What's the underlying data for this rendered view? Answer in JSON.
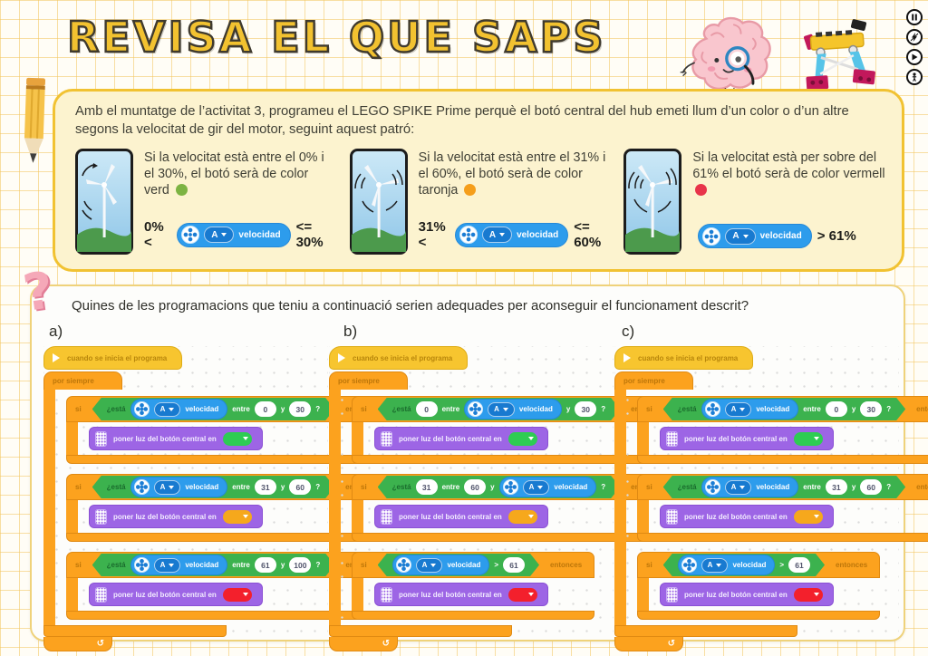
{
  "title": "REVISA EL QUE SAPS",
  "floating_controls": {
    "icons": [
      "pause-icon",
      "lightning-icon",
      "play-icon",
      "person-icon"
    ]
  },
  "intro": "Amb el muntatge de l’activitat 3, programeu el LEGO SPIKE Prime perquè el botó central del hub emeti llum d’un color o d’un altre segons la velocitat de gir del motor, seguint aquest patró:",
  "conditions": [
    {
      "text": "Si la velocitat està entre el 0% i el 30%, el botó serà de color verd",
      "dot_color": "#7CB342",
      "prefix": "0% <",
      "suffix": "<= 30%"
    },
    {
      "text": "Si la velocitat està entre el 31% i el 60%, el botó serà de color taronja",
      "dot_color": "#F59E1B",
      "prefix": "31% <",
      "suffix": "<= 60%"
    },
    {
      "text": "Si la velocitat està per sobre del 61% el botó serà de color vermell",
      "dot_color": "#E8344A",
      "prefix": "",
      "suffix": "> 61%"
    }
  ],
  "question": "Quines de les programacions que teniu a continuació serien adequades per aconseguir el funcionament descrit?",
  "blocks": {
    "hat": "cuando se inicia el programa",
    "forever": "por siempre",
    "if": "si",
    "then": "entonces",
    "esta": "¿está",
    "set_light": "poner luz del botón central en",
    "port": "A",
    "metric": "velocidad",
    "loop_arrow": "↺"
  },
  "programs": [
    {
      "label": "a)",
      "ifs": [
        {
          "light": "#2ECC53",
          "segments": [
            {
              "t": "esta"
            },
            {
              "t": "motor"
            },
            {
              "t": "lbl",
              "v": "entre"
            },
            {
              "t": "num",
              "v": "0"
            },
            {
              "t": "lbl",
              "v": "y"
            },
            {
              "t": "num",
              "v": "30"
            },
            {
              "t": "lbl",
              "v": "?"
            }
          ]
        },
        {
          "light": "#F6A81C",
          "segments": [
            {
              "t": "esta"
            },
            {
              "t": "motor"
            },
            {
              "t": "lbl",
              "v": "entre"
            },
            {
              "t": "num",
              "v": "31"
            },
            {
              "t": "lbl",
              "v": "y"
            },
            {
              "t": "num",
              "v": "60"
            },
            {
              "t": "lbl",
              "v": "?"
            }
          ]
        },
        {
          "light": "#F3202C",
          "segments": [
            {
              "t": "esta"
            },
            {
              "t": "motor"
            },
            {
              "t": "lbl",
              "v": "entre"
            },
            {
              "t": "num",
              "v": "61"
            },
            {
              "t": "lbl",
              "v": "y"
            },
            {
              "t": "num",
              "v": "100"
            },
            {
              "t": "lbl",
              "v": "?"
            }
          ]
        }
      ]
    },
    {
      "label": "b)",
      "ifs": [
        {
          "light": "#2ECC53",
          "segments": [
            {
              "t": "esta"
            },
            {
              "t": "num",
              "v": "0"
            },
            {
              "t": "lbl",
              "v": "entre"
            },
            {
              "t": "motor"
            },
            {
              "t": "lbl",
              "v": "y"
            },
            {
              "t": "num",
              "v": "30"
            },
            {
              "t": "lbl",
              "v": "?"
            }
          ]
        },
        {
          "light": "#F6A81C",
          "segments": [
            {
              "t": "esta"
            },
            {
              "t": "num",
              "v": "31"
            },
            {
              "t": "lbl",
              "v": "entre"
            },
            {
              "t": "num",
              "v": "60"
            },
            {
              "t": "lbl",
              "v": "y"
            },
            {
              "t": "motor"
            },
            {
              "t": "lbl",
              "v": "?"
            }
          ]
        },
        {
          "light": "#F3202C",
          "segments": [
            {
              "t": "motor"
            },
            {
              "t": "lbl",
              "v": ">"
            },
            {
              "t": "num",
              "v": "61"
            }
          ]
        }
      ]
    },
    {
      "label": "c)",
      "ifs": [
        {
          "light": "#2ECC53",
          "segments": [
            {
              "t": "esta"
            },
            {
              "t": "motor"
            },
            {
              "t": "lbl",
              "v": "entre"
            },
            {
              "t": "num",
              "v": "0"
            },
            {
              "t": "lbl",
              "v": "y"
            },
            {
              "t": "num",
              "v": "30"
            },
            {
              "t": "lbl",
              "v": "?"
            }
          ]
        },
        {
          "light": "#F6A81C",
          "segments": [
            {
              "t": "esta"
            },
            {
              "t": "motor"
            },
            {
              "t": "lbl",
              "v": "entre"
            },
            {
              "t": "num",
              "v": "31"
            },
            {
              "t": "lbl",
              "v": "y"
            },
            {
              "t": "num",
              "v": "60"
            },
            {
              "t": "lbl",
              "v": "?"
            }
          ]
        },
        {
          "light": "#F3202C",
          "segments": [
            {
              "t": "motor"
            },
            {
              "t": "lbl",
              "v": ">"
            },
            {
              "t": "num",
              "v": "61"
            }
          ]
        }
      ]
    }
  ],
  "colors": {
    "accent_yellow": "#F2C230",
    "block_yellow": "#F7C52F",
    "block_orange": "#FCA21E",
    "block_green": "#3CB24E",
    "block_blue": "#2D9CEC",
    "block_purple": "#9D65E5",
    "light_green": "#2ECC53",
    "light_orange": "#F6A81C",
    "light_red": "#F3202C",
    "pink": "#F5A8B8"
  }
}
